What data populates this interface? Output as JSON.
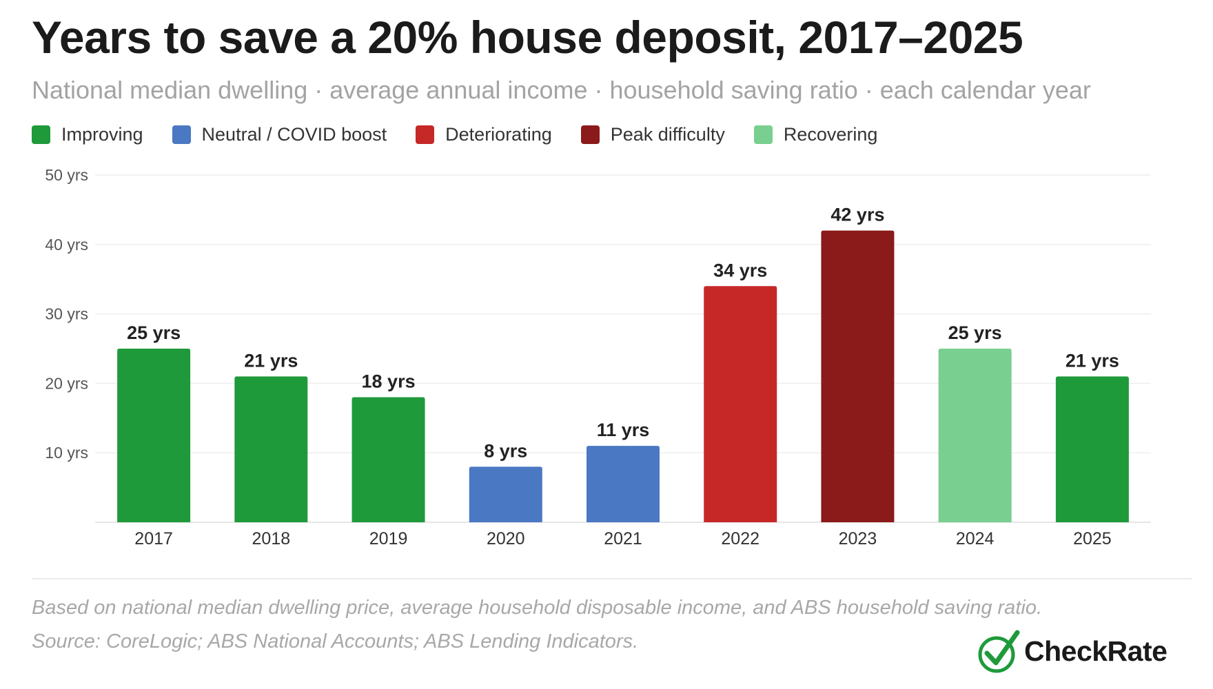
{
  "title": "Years to save a 20% house deposit, 2017–2025",
  "subtitle": "National median dwelling · average annual income · household saving ratio · each calendar year",
  "legend": [
    {
      "label": "Improving",
      "color": "#1f9a3b"
    },
    {
      "label": "Neutral / COVID boost",
      "color": "#4a78c2"
    },
    {
      "label": "Deteriorating",
      "color": "#c62828"
    },
    {
      "label": "Peak difficulty",
      "color": "#8b1a1a"
    },
    {
      "label": "Recovering",
      "color": "#78cf8f"
    }
  ],
  "chart_data": {
    "type": "bar",
    "categories": [
      "2017",
      "2018",
      "2019",
      "2020",
      "2021",
      "2022",
      "2023",
      "2024",
      "2025"
    ],
    "values": [
      25,
      21,
      18,
      8,
      11,
      34,
      42,
      25,
      21
    ],
    "value_labels": [
      "25 yrs",
      "21 yrs",
      "18 yrs",
      "8 yrs",
      "11 yrs",
      "34 yrs",
      "42 yrs",
      "25 yrs",
      "21 yrs"
    ],
    "bar_colors": [
      "#1f9a3b",
      "#1f9a3b",
      "#1f9a3b",
      "#4a78c2",
      "#4a78c2",
      "#c62828",
      "#8b1a1a",
      "#78cf8f",
      "#1f9a3b"
    ],
    "ylim": [
      0,
      50
    ],
    "yticks": [
      10,
      20,
      30,
      40,
      50
    ],
    "ytick_labels": [
      "10 yrs",
      "20 yrs",
      "30 yrs",
      "40 yrs",
      "50 yrs"
    ],
    "grid": true
  },
  "footnote": {
    "line1": "Based on national median dwelling price, average household disposable income, and ABS household saving ratio.",
    "line2": "Source: CoreLogic; ABS National Accounts; ABS Lending Indicators."
  },
  "logo": {
    "text": "CheckRate",
    "icon": "check-circle-icon",
    "color": "#1f9a3b"
  }
}
